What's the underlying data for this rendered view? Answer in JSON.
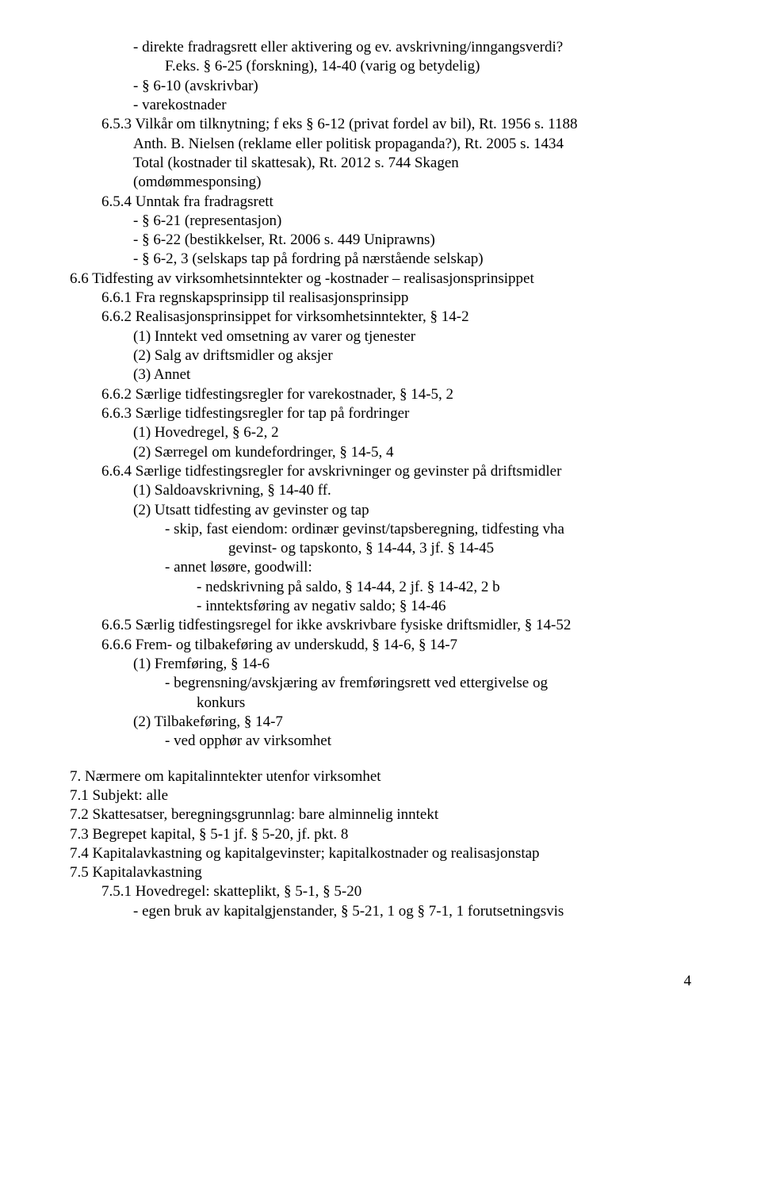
{
  "lines": [
    {
      "indent": 2,
      "text": "- direkte fradragsrett eller aktivering og ev. avskrivning/inngangsverdi?"
    },
    {
      "indent": 3,
      "text": "F.eks. § 6-25 (forskning), 14-40 (varig og betydelig)"
    },
    {
      "indent": 2,
      "text": "- § 6-10 (avskrivbar)"
    },
    {
      "indent": 2,
      "text": "- varekostnader"
    },
    {
      "indent": 1,
      "text": "6.5.3 Vilkår om tilknytning; f eks § 6-12 (privat fordel av bil), Rt. 1956 s. 1188"
    },
    {
      "indent": 2,
      "text": "Anth. B. Nielsen (reklame eller politisk propaganda?), Rt. 2005 s. 1434"
    },
    {
      "indent": 2,
      "text": "Total (kostnader til skattesak), Rt. 2012 s. 744 Skagen"
    },
    {
      "indent": 2,
      "text": "(omdømmesponsing)"
    },
    {
      "indent": 1,
      "text": "6.5.4 Unntak fra fradragsrett"
    },
    {
      "indent": 2,
      "text": "- § 6-21 (representasjon)"
    },
    {
      "indent": 2,
      "text": "- § 6-22 (bestikkelser, Rt. 2006 s. 449 Uniprawns)"
    },
    {
      "indent": 2,
      "text": "- § 6-2, 3 (selskaps tap på fordring på nærstående selskap)"
    },
    {
      "indent": 0,
      "text": "6.6 Tidfesting av virksomhetsinntekter og -kostnader – realisasjonsprinsippet"
    },
    {
      "indent": 1,
      "text": "6.6.1 Fra regnskapsprinsipp til realisasjonsprinsipp"
    },
    {
      "indent": 1,
      "text": "6.6.2 Realisasjonsprinsippet for virksomhetsinntekter, § 14-2"
    },
    {
      "indent": 2,
      "text": "(1) Inntekt ved omsetning av varer og tjenester"
    },
    {
      "indent": 2,
      "text": "(2) Salg av driftsmidler og aksjer"
    },
    {
      "indent": 2,
      "text": "(3) Annet"
    },
    {
      "indent": 1,
      "text": "6.6.2 Særlige tidfestingsregler for varekostnader, § 14-5, 2"
    },
    {
      "indent": 1,
      "text": "6.6.3 Særlige tidfestingsregler for tap på fordringer"
    },
    {
      "indent": 2,
      "text": "(1) Hovedregel, § 6-2, 2"
    },
    {
      "indent": 2,
      "text": "(2) Særregel om kundefordringer, § 14-5, 4"
    },
    {
      "indent": 1,
      "text": "6.6.4 Særlige tidfestingsregler for avskrivninger og gevinster på driftsmidler"
    },
    {
      "indent": 2,
      "text": "(1) Saldoavskrivning, § 14-40 ff."
    },
    {
      "indent": 2,
      "text": "(2) Utsatt tidfesting av gevinster og tap"
    },
    {
      "indent": 3,
      "text": "- skip, fast eiendom: ordinær gevinst/tapsberegning, tidfesting vha"
    },
    {
      "indent": 5,
      "text": "gevinst- og tapskonto, § 14-44, 3 jf. § 14-45"
    },
    {
      "indent": 3,
      "text": "- annet løsøre, goodwill:"
    },
    {
      "indent": 4,
      "text": "- nedskrivning på saldo, § 14-44, 2 jf. § 14-42, 2  b"
    },
    {
      "indent": 4,
      "text": "- inntektsføring av negativ saldo; § 14-46"
    },
    {
      "indent": 1,
      "text": "6.6.5 Særlig tidfestingsregel for ikke avskrivbare fysiske driftsmidler, § 14-52"
    },
    {
      "indent": 1,
      "text": "6.6.6 Frem- og tilbakeføring av underskudd, § 14-6, § 14-7"
    },
    {
      "indent": 2,
      "text": "(1) Fremføring, § 14-6"
    },
    {
      "indent": 3,
      "text": "- begrensning/avskjæring av fremføringsrett ved ettergivelse og"
    },
    {
      "indent": 4,
      "text": "konkurs"
    },
    {
      "indent": 2,
      "text": "(2) Tilbakeføring, § 14-7"
    },
    {
      "indent": 3,
      "text": "- ved opphør av virksomhet"
    },
    {
      "indent": 0,
      "text": "",
      "blank": true
    },
    {
      "indent": 0,
      "text": "7. Nærmere om kapitalinntekter utenfor virksomhet"
    },
    {
      "indent": 0,
      "text": "7.1 Subjekt: alle"
    },
    {
      "indent": 0,
      "text": "7.2 Skattesatser, beregningsgrunnlag: bare alminnelig inntekt"
    },
    {
      "indent": 0,
      "text": "7.3 Begrepet kapital, § 5-1 jf. § 5-20, jf. pkt. 8"
    },
    {
      "indent": 0,
      "text": "7.4 Kapitalavkastning og kapitalgevinster; kapitalkostnader og realisasjonstap"
    },
    {
      "indent": 0,
      "text": "7.5 Kapitalavkastning"
    },
    {
      "indent": 1,
      "text": "7.5.1 Hovedregel: skatteplikt, § 5-1, § 5-20"
    },
    {
      "indent": 2,
      "text": "- egen bruk av kapitalgjenstander, § 5-21, 1 og § 7-1, 1 forutsetningsvis"
    }
  ],
  "pageNumber": "4",
  "colors": {
    "text": "#000000",
    "background": "#ffffff"
  },
  "typography": {
    "fontFamily": "Times New Roman",
    "fontSizePx": 19,
    "lineHeight": 1.28
  }
}
